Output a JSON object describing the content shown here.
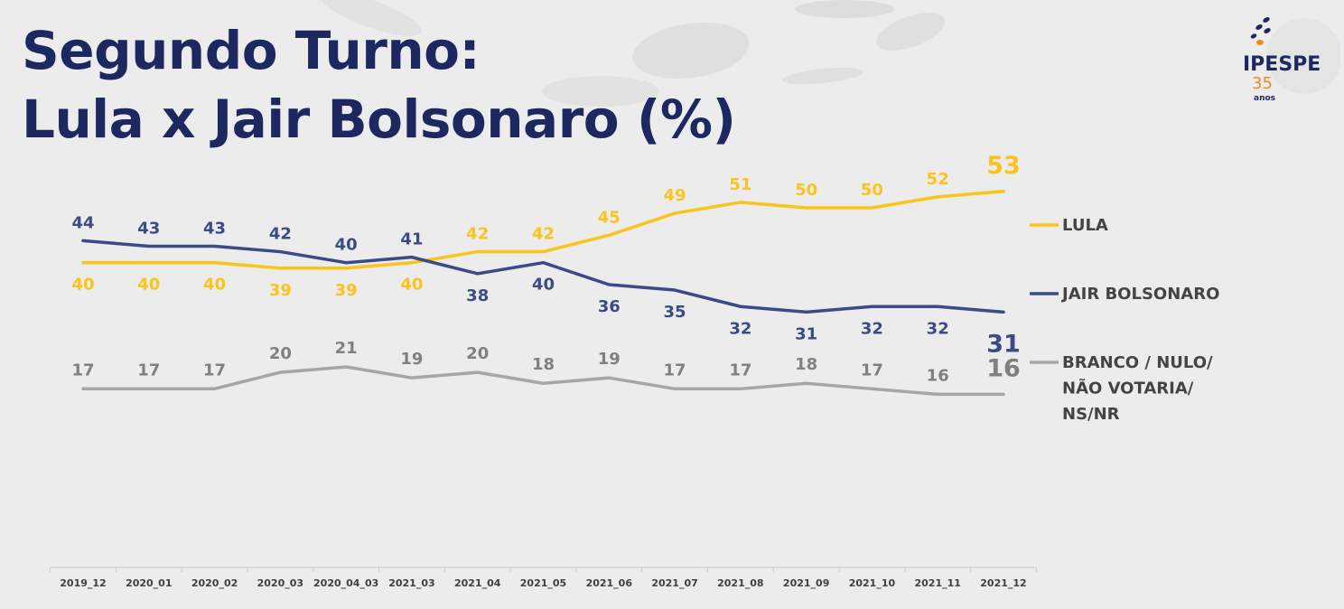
{
  "header": {
    "title_line1": "Segundo Turno:",
    "title_line2": "Lula x Jair Bolsonaro (%)"
  },
  "logo": {
    "text": "IPESPE",
    "number": "35",
    "subtext": "anos",
    "colors": {
      "dark": "#1d2860",
      "accent": "#f28a1e"
    }
  },
  "chart_data": {
    "type": "line",
    "categories": [
      "2019_12",
      "2020_01",
      "2020_02",
      "2020_03",
      "2020_04_03",
      "2021_03",
      "2021_04",
      "2021_05",
      "2021_06",
      "2021_07",
      "2021_08",
      "2021_09",
      "2021_10",
      "2021_11",
      "2021_12"
    ],
    "series": [
      {
        "name": "LULA",
        "color": "#fcc31d",
        "values": [
          40,
          40,
          40,
          39,
          39,
          40,
          42,
          42,
          45,
          49,
          51,
          50,
          50,
          52,
          53
        ]
      },
      {
        "name": "JAIR BOLSONARO",
        "color": "#3a4b85",
        "values": [
          44,
          43,
          43,
          42,
          40,
          41,
          38,
          40,
          36,
          35,
          32,
          31,
          32,
          32,
          31
        ]
      },
      {
        "name": "BRANCO / NULO/ NÃO VOTARIA/ NS/NR",
        "legend_lines": [
          "BRANCO / NULO/",
          "NÃO VOTARIA/",
          "NS/NR"
        ],
        "color": "#a6a6a6",
        "label_color": "#808080",
        "values": [
          17,
          17,
          17,
          20,
          21,
          19,
          20,
          18,
          19,
          17,
          17,
          18,
          17,
          16,
          16
        ]
      }
    ],
    "legend_position": "right",
    "grid": false
  }
}
